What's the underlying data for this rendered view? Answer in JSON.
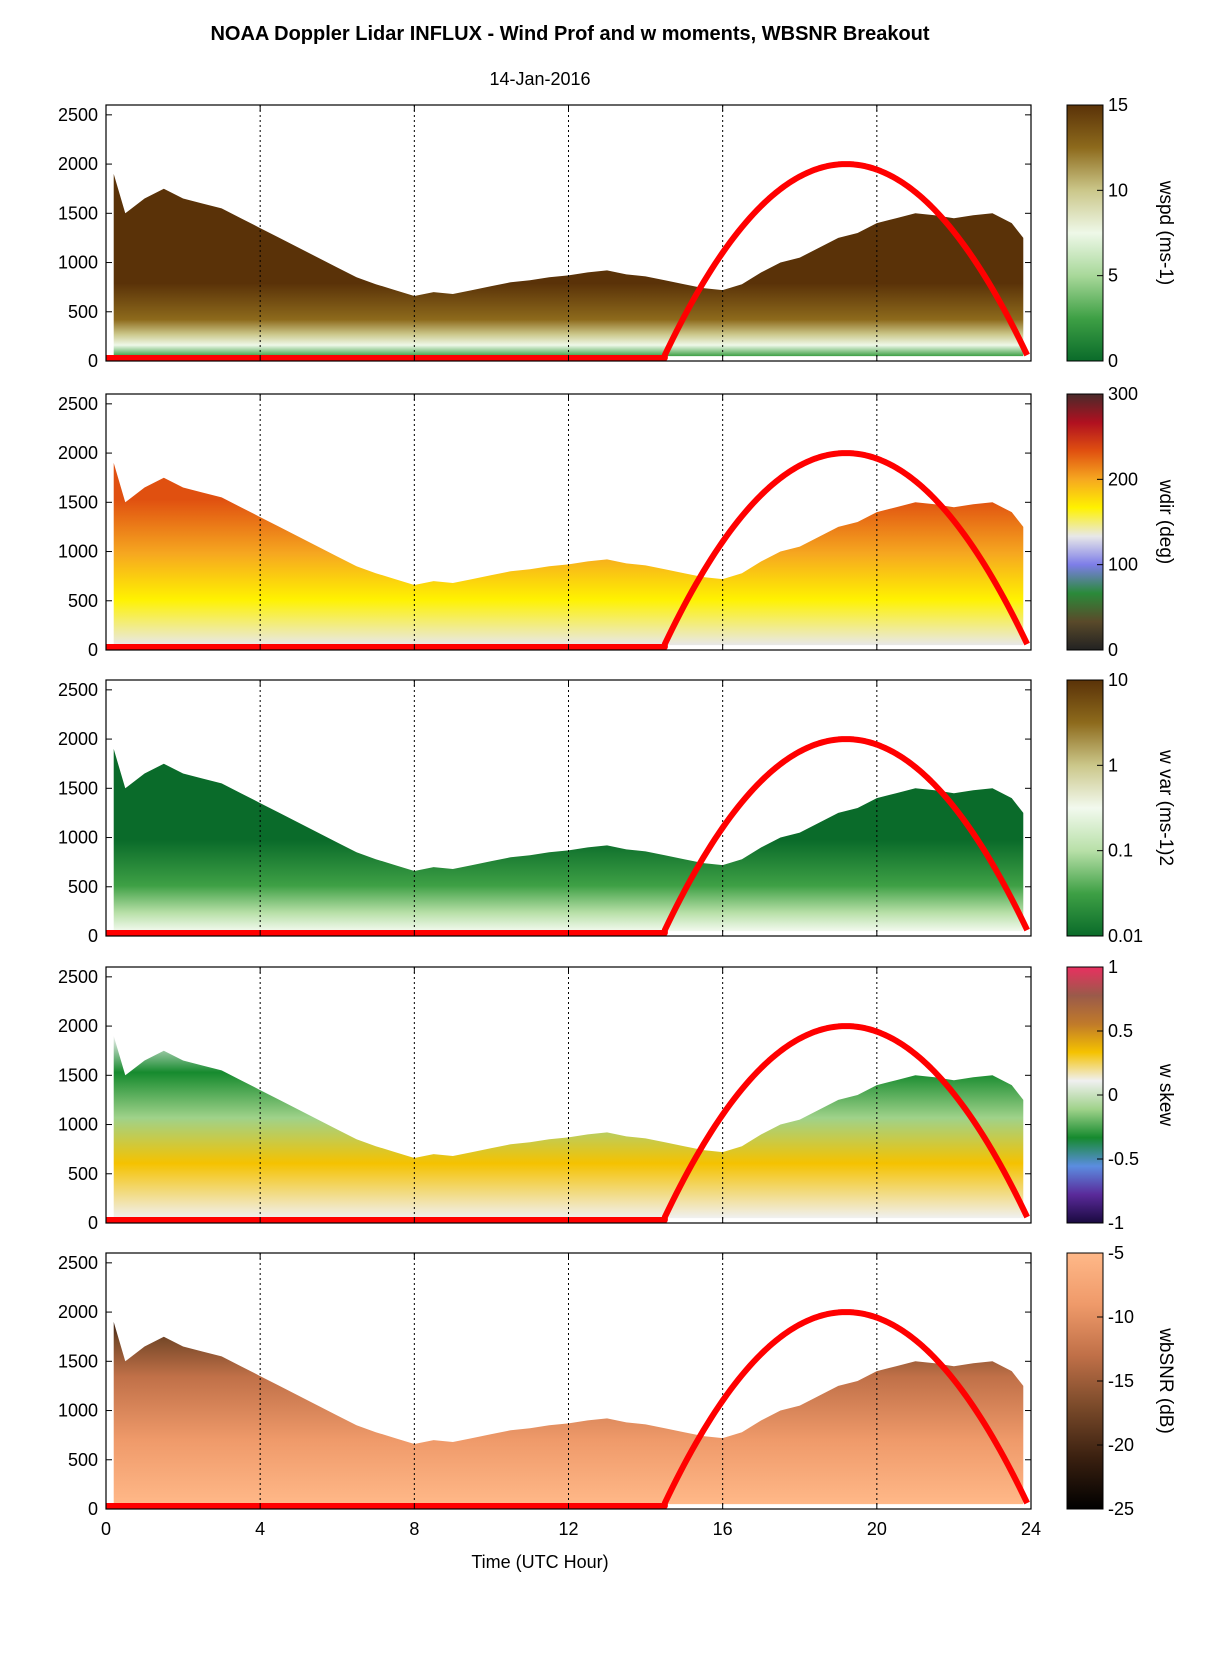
{
  "title": "NOAA Doppler Lidar INFLUX - Wind Prof and w moments, WBSNR Breakout",
  "subtitle": "14-Jan-2016",
  "chart_data": {
    "type": "heatmap",
    "x_axis": {
      "label": "Time (UTC Hour)",
      "range": [
        0,
        24
      ],
      "ticks": [
        0,
        4,
        8,
        12,
        16,
        20,
        24
      ],
      "tick_labels": [
        "0",
        "4",
        "8",
        "12",
        "16",
        "20",
        "24"
      ],
      "grid": "dotted vertical lines at 4, 8, 12, 16, 20"
    },
    "y_axis": {
      "range": [
        0,
        2600
      ],
      "ticks": [
        0,
        500,
        1000,
        1500,
        2000,
        2500
      ],
      "tick_labels": [
        "0",
        "500",
        "1000",
        "1500",
        "2000",
        "2500"
      ]
    },
    "overlay": {
      "color": "#ff0000",
      "start_hour": 14.5,
      "peak_hour": 19.2,
      "peak_value": 2000,
      "end_hour": 23.9,
      "end_value": 60,
      "baseline_value": 30
    },
    "data_top_hours": [
      0.2,
      0.5,
      1.0,
      1.5,
      2.0,
      2.5,
      3.0,
      3.5,
      4.0,
      4.5,
      5.0,
      5.5,
      6.0,
      6.5,
      7.0,
      7.5,
      8.0,
      8.5,
      9.0,
      9.5,
      10.0,
      10.5,
      11.0,
      11.5,
      12.0,
      12.5,
      13.0,
      13.5,
      14.0,
      14.5,
      15.0,
      15.5,
      16.0,
      16.5,
      17.0,
      17.5,
      18.0,
      18.5,
      19.0,
      19.5,
      20.0,
      20.5,
      21.0,
      21.5,
      22.0,
      22.5,
      23.0,
      23.5,
      23.8
    ],
    "data_top_heights": [
      1900,
      1500,
      1650,
      1750,
      1650,
      1600,
      1550,
      1450,
      1350,
      1250,
      1150,
      1050,
      950,
      850,
      780,
      720,
      660,
      700,
      680,
      720,
      760,
      800,
      820,
      850,
      870,
      900,
      920,
      880,
      860,
      820,
      780,
      740,
      720,
      780,
      900,
      1000,
      1050,
      1150,
      1250,
      1300,
      1400,
      1450,
      1500,
      1480,
      1450,
      1480,
      1500,
      1400,
      1250
    ],
    "panels": [
      {
        "name": "wspd",
        "ylabel": "wspd (ms-1)",
        "colorbar_ticks": [
          "15",
          "10",
          "5",
          "0"
        ],
        "colors": [
          "#0a6b2a",
          "#3ea045",
          "#a8d89a",
          "#eef8e8",
          "#cbc78a",
          "#8d6a1c",
          "#5a3208"
        ]
      },
      {
        "name": "wdir",
        "ylabel": "wdir (deg)",
        "colorbar_ticks": [
          "300",
          "200",
          "100",
          "0"
        ],
        "colors": [
          "#222222",
          "#5a4a2a",
          "#2a8a3a",
          "#7d7de8",
          "#e8e8e8",
          "#fff200",
          "#f6a820",
          "#e05010",
          "#b01020",
          "#4a2a2a"
        ]
      },
      {
        "name": "w var",
        "ylabel": "w var (ms-1)2",
        "colorbar_ticks": [
          "10",
          "1",
          "0.1",
          "0.01"
        ],
        "colors": [
          "#0a6b2a",
          "#3ea045",
          "#b8e0a8",
          "#f2f9ee",
          "#cbc78a",
          "#8d6a1c",
          "#5a3208"
        ]
      },
      {
        "name": "w skew",
        "ylabel": "w skew",
        "colorbar_ticks": [
          "1",
          "0.5",
          "0",
          "-0.5",
          "-1"
        ],
        "colors": [
          "#1a0a40",
          "#5a2a9a",
          "#5b8de0",
          "#168a2e",
          "#9fd28a",
          "#f0f0f0",
          "#f5c200",
          "#c07a2a",
          "#9a5a4a",
          "#e83060"
        ]
      },
      {
        "name": "wbSNR",
        "ylabel": "wbSNR (dB)",
        "colorbar_ticks": [
          "-5",
          "-10",
          "-15",
          "-20",
          "-25"
        ],
        "colors": [
          "#000000",
          "#3a2010",
          "#7a4a2a",
          "#c07048",
          "#ef9a6a",
          "#ffb888"
        ]
      }
    ]
  }
}
